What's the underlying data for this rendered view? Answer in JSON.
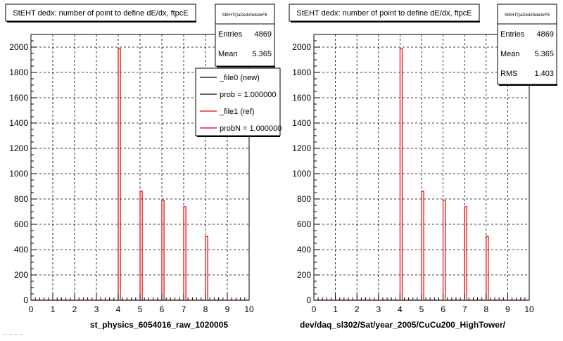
{
  "page": {
    "footer_note": "... ... ... ..."
  },
  "colors": {
    "background": "#ffffff",
    "frame": "#000000",
    "hist_new": "#000000",
    "hist_ref": "#e00000",
    "grid": "#000000"
  },
  "chart_data": [
    {
      "type": "bar",
      "title": "StEHT dedx: number of point to define dE/dx, ftpcE",
      "xlabel": "st_physics_6054016_raw_1020005",
      "ylabel": "",
      "xlim": [
        0,
        10
      ],
      "ylim": [
        0,
        2100
      ],
      "x_ticks": [
        0,
        1,
        2,
        3,
        4,
        5,
        6,
        7,
        8,
        9,
        10
      ],
      "y_ticks": [
        0,
        200,
        400,
        600,
        800,
        1000,
        1200,
        1400,
        1600,
        1800,
        2000
      ],
      "grid": true,
      "bin_width": 0.1,
      "series": [
        {
          "name": "_file1 (ref)",
          "color": "#e00000",
          "bins": [
            {
              "x": 4.0,
              "value": 1990
            },
            {
              "x": 5.0,
              "value": 860
            },
            {
              "x": 6.0,
              "value": 790
            },
            {
              "x": 7.0,
              "value": 740
            },
            {
              "x": 8.0,
              "value": 505
            }
          ]
        }
      ],
      "stats": {
        "name": "StEHTQaDedxNdedxFE",
        "rows": [
          {
            "label": "Entries",
            "value": "4869"
          },
          {
            "label": "Mean",
            "value": "5.365"
          }
        ]
      },
      "legend": {
        "placement": "top-right",
        "entries": [
          {
            "label": "_file0 (new)",
            "color": "#000000"
          },
          {
            "label": "prob = 1.000000",
            "color": "#000000"
          },
          {
            "label": "_file1 (ref)",
            "color": "#e00000"
          },
          {
            "label": "probN = 1.000000",
            "color": "#e00000"
          }
        ]
      }
    },
    {
      "type": "bar",
      "title": "StEHT dedx: number of point to define dE/dx, ftpcE",
      "xlabel": "dev/daq_sl302/Sat/year_2005/CuCu200_HighTower/",
      "ylabel": "",
      "xlim": [
        0,
        10
      ],
      "ylim": [
        0,
        2100
      ],
      "x_ticks": [
        0,
        1,
        2,
        3,
        4,
        5,
        6,
        7,
        8,
        9,
        10
      ],
      "y_ticks": [
        0,
        200,
        400,
        600,
        800,
        1000,
        1200,
        1400,
        1600,
        1800,
        2000
      ],
      "grid": true,
      "bin_width": 0.1,
      "series": [
        {
          "name": "",
          "color": "#e00000",
          "bins": [
            {
              "x": 4.0,
              "value": 1990
            },
            {
              "x": 5.0,
              "value": 860
            },
            {
              "x": 6.0,
              "value": 790
            },
            {
              "x": 7.0,
              "value": 740
            },
            {
              "x": 8.0,
              "value": 505
            }
          ]
        }
      ],
      "stats": {
        "name": "StEHTQaDedxNdedxFE",
        "rows": [
          {
            "label": "Entries",
            "value": "4869"
          },
          {
            "label": "Mean",
            "value": "5.365"
          },
          {
            "label": "RMS",
            "value": "1.403"
          }
        ]
      }
    }
  ]
}
